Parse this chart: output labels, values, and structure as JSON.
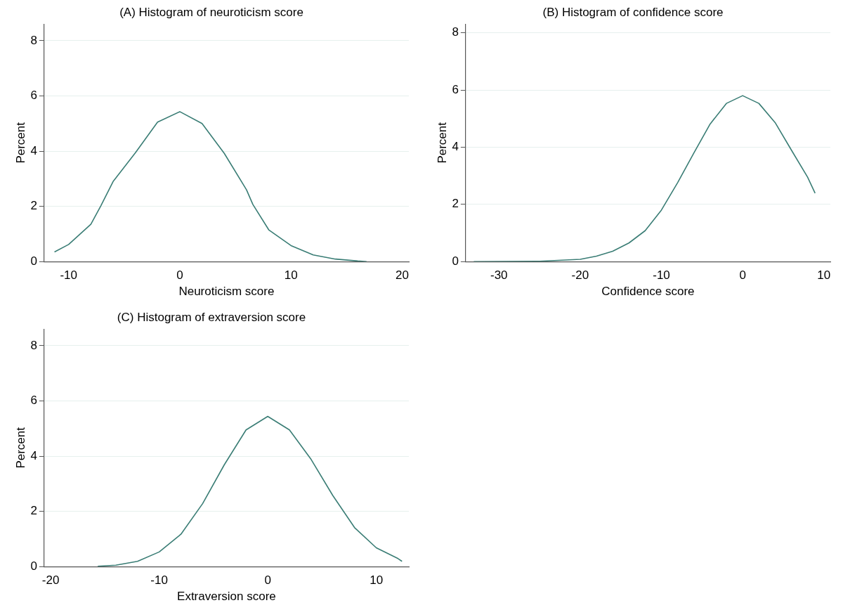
{
  "chart_data": [
    {
      "type": "line",
      "title": "(A) Histogram of neuroticism score",
      "xlabel": "Neuroticism score",
      "ylabel": "Percent",
      "xlim": [
        -12.2,
        20.6
      ],
      "xticks": [
        -10,
        0,
        10,
        20
      ],
      "ylim": [
        0,
        8.6
      ],
      "yticks": [
        0,
        2,
        4,
        6,
        8
      ],
      "grid": "y",
      "marker": "none",
      "legend": false,
      "series": [
        {
          "color": "#3a7d75",
          "x": [
            -11.27,
            -10,
            -8,
            -7.1,
            -6,
            -4,
            -2,
            0,
            2,
            4,
            6,
            6.57,
            8,
            10,
            12,
            14,
            16,
            16.8
          ],
          "values": [
            0.35,
            0.62,
            1.35,
            2.02,
            2.9,
            3.94,
            5.05,
            5.43,
            5.0,
            3.92,
            2.6,
            2.07,
            1.15,
            0.58,
            0.24,
            0.09,
            0.02,
            0
          ]
        }
      ]
    },
    {
      "type": "line",
      "title": "(B) Histogram of confidence score",
      "xlabel": "Confidence score",
      "ylabel": "Percent",
      "xlim": [
        -34.1,
        10.8
      ],
      "xticks": [
        -30,
        -20,
        -10,
        0,
        10
      ],
      "ylim": [
        0,
        8.3
      ],
      "yticks": [
        0,
        2,
        4,
        6,
        8
      ],
      "grid": "y",
      "marker": "none",
      "legend": false,
      "series": [
        {
          "color": "#3a7d75",
          "x": [
            -33.1,
            -25,
            -20,
            -18,
            -16,
            -14,
            -12,
            -10,
            -8,
            -6,
            -4,
            -2,
            0,
            2,
            4,
            6,
            8,
            8.92
          ],
          "values": [
            0,
            0.01,
            0.08,
            0.19,
            0.36,
            0.65,
            1.08,
            1.8,
            2.76,
            3.8,
            4.81,
            5.53,
            5.8,
            5.53,
            4.86,
            3.9,
            2.95,
            2.39
          ]
        }
      ]
    },
    {
      "type": "line",
      "title": "(C) Histogram of extraversion score",
      "xlabel": "Extraversion score",
      "ylabel": "Percent",
      "xlim": [
        -20.6,
        13.0
      ],
      "xticks": [
        -20,
        -10,
        0,
        10
      ],
      "ylim": [
        0,
        8.6
      ],
      "yticks": [
        0,
        2,
        4,
        6,
        8
      ],
      "grid": "y",
      "marker": "none",
      "legend": false,
      "series": [
        {
          "color": "#3a7d75",
          "x": [
            -15.66,
            -14,
            -12,
            -10,
            -8,
            -6,
            -4,
            -2,
            0,
            2,
            4,
            6,
            8,
            10,
            12,
            12.37
          ],
          "values": [
            0.01,
            0.05,
            0.19,
            0.53,
            1.17,
            2.28,
            3.69,
            4.95,
            5.44,
            4.95,
            3.88,
            2.57,
            1.41,
            0.68,
            0.29,
            0.19
          ]
        }
      ]
    }
  ]
}
